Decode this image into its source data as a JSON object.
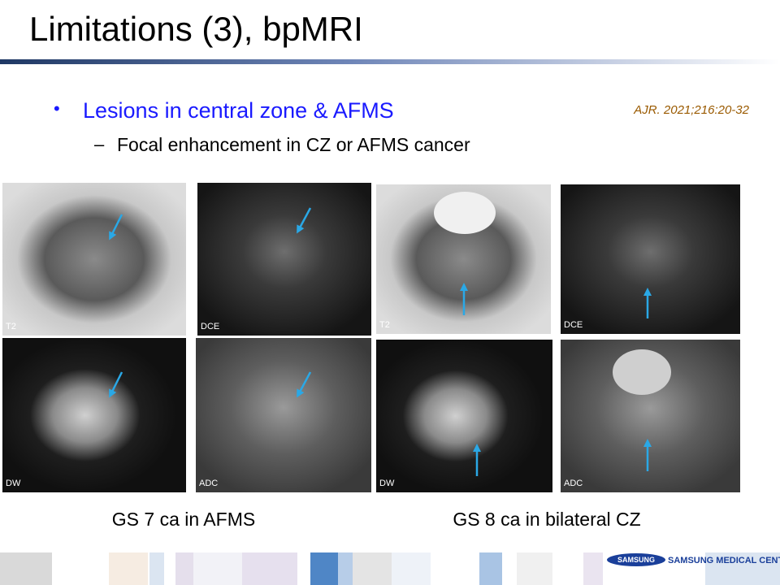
{
  "header": {
    "title": "Limitations (3), bpMRI"
  },
  "body": {
    "bullet": "Lesions in central zone & AFMS",
    "sub_bullet": "Focal enhancement in CZ or AFMS cancer",
    "citation": "AJR. 2021;216:20-32"
  },
  "images": [
    {
      "label": "T2"
    },
    {
      "label": "DCE"
    },
    {
      "label": "T2"
    },
    {
      "label": "DCE"
    },
    {
      "label": "DW"
    },
    {
      "label": "ADC"
    },
    {
      "label": "DW"
    },
    {
      "label": "ADC"
    }
  ],
  "captions": [
    "GS 7 ca in AFMS",
    "GS 8 ca in bilateral CZ"
  ],
  "footer": {
    "logo": "SAMSUNG",
    "brand": "SAMSUNG MEDICAL CENTER"
  }
}
